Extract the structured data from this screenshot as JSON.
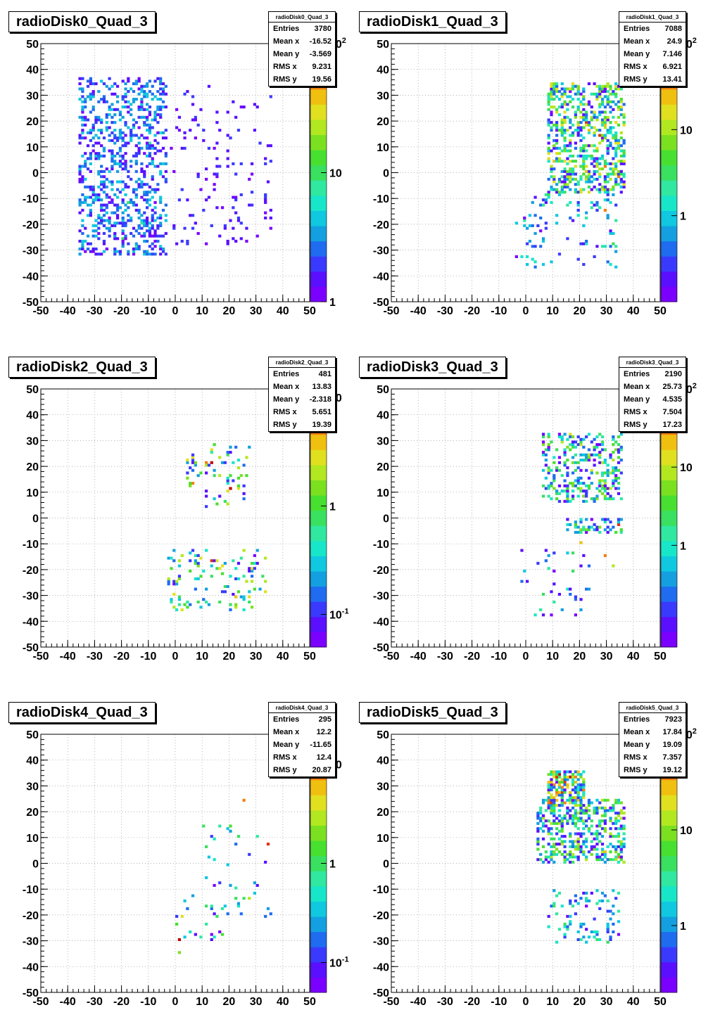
{
  "panels": [
    {
      "title": "radioDisk0_Quad_3",
      "stats": {
        "name": "radioDisk0_Quad_3",
        "rows": [
          {
            "label": "Entries",
            "value": "3780"
          },
          {
            "label": "Mean x",
            "value": "-16.52"
          },
          {
            "label": "Mean y",
            "value": "-3.569"
          },
          {
            "label": "RMS x",
            "value": "9.231"
          },
          {
            "label": "RMS y",
            "value": "19.56"
          }
        ]
      },
      "chart_data": {
        "type": "heatmap",
        "title": "radioDisk0_Quad_3",
        "xlim": [
          -50,
          50
        ],
        "ylim": [
          -50,
          50
        ],
        "x_ticks": [
          -50,
          -40,
          -30,
          -20,
          -10,
          0,
          10,
          20,
          30,
          40,
          50
        ],
        "y_ticks": [
          -50,
          -40,
          -30,
          -20,
          -10,
          0,
          10,
          20,
          30,
          40,
          50
        ],
        "z_scale": "log",
        "zlim": [
          1,
          100
        ],
        "z_ticks": [
          {
            "value": 100,
            "label": "10",
            "sup": "2"
          },
          {
            "value": 10,
            "label": "10"
          },
          {
            "value": 1,
            "label": "1"
          }
        ],
        "grid": true,
        "hot_cells": [
          [
            -20,
            -26,
            9
          ],
          [
            -18,
            -12,
            9
          ],
          [
            -15,
            -29,
            8
          ],
          [
            -13,
            -20,
            7
          ],
          [
            -10,
            11,
            7
          ],
          [
            -6,
            15,
            6
          ],
          [
            -28,
            -18,
            5
          ],
          [
            -16,
            17,
            5
          ],
          [
            -22,
            -10,
            5
          ],
          [
            -30,
            -19,
            4
          ],
          [
            -25,
            24,
            4
          ]
        ],
        "regions": [
          {
            "x": [
              -36,
              -3
            ],
            "y": [
              -32,
              37
            ],
            "density": 0.3,
            "zmax": 5
          },
          {
            "x": [
              -2,
              38
            ],
            "y": [
              -28,
              34
            ],
            "density": 0.05,
            "zmax": 2
          }
        ]
      }
    },
    {
      "title": "radioDisk1_Quad_3",
      "stats": {
        "name": "radioDisk1_Quad_3",
        "rows": [
          {
            "label": "Entries",
            "value": "7088"
          },
          {
            "label": "Mean x",
            "value": "24.9"
          },
          {
            "label": "Mean y",
            "value": "7.146"
          },
          {
            "label": "RMS x",
            "value": "6.921"
          },
          {
            "label": "RMS y",
            "value": "13.41"
          }
        ]
      },
      "chart_data": {
        "type": "heatmap",
        "title": "radioDisk1_Quad_3",
        "xlim": [
          -50,
          50
        ],
        "ylim": [
          -50,
          50
        ],
        "x_ticks": [
          -50,
          -40,
          -30,
          -20,
          -10,
          0,
          10,
          20,
          30,
          40,
          50
        ],
        "y_ticks": [
          -50,
          -40,
          -30,
          -20,
          -10,
          0,
          10,
          20,
          30,
          40,
          50
        ],
        "z_scale": "log",
        "zlim": [
          0.1,
          100
        ],
        "z_ticks": [
          {
            "value": 100,
            "label": "10",
            "sup": "2"
          },
          {
            "value": 10,
            "label": "10"
          },
          {
            "value": 1,
            "label": "1"
          }
        ],
        "grid": true,
        "hot_cells": [
          [
            22,
            19,
            60
          ],
          [
            27,
            14,
            50
          ],
          [
            29,
            2,
            40
          ],
          [
            34,
            -2,
            30
          ],
          [
            29,
            -15,
            30
          ],
          [
            14,
            26,
            20
          ],
          [
            22,
            0,
            20
          ],
          [
            16,
            12,
            15
          ],
          [
            32,
            3,
            15
          ],
          [
            24,
            21,
            12
          ]
        ],
        "regions": [
          {
            "x": [
              8,
              37
            ],
            "y": [
              -8,
              35
            ],
            "density": 0.4,
            "zmax": 20
          },
          {
            "x": [
              -4,
              34
            ],
            "y": [
              -37,
              -8
            ],
            "density": 0.08,
            "zmax": 3
          }
        ]
      }
    },
    {
      "title": "radioDisk2_Quad_3",
      "stats": {
        "name": "radioDisk2_Quad_3",
        "rows": [
          {
            "label": "Entries",
            "value": "481"
          },
          {
            "label": "Mean x",
            "value": "13.83"
          },
          {
            "label": "Mean y",
            "value": "-2.318"
          },
          {
            "label": "RMS x",
            "value": "5.651"
          },
          {
            "label": "RMS y",
            "value": "19.39"
          }
        ]
      },
      "chart_data": {
        "type": "heatmap",
        "title": "radioDisk2_Quad_3",
        "xlim": [
          -50,
          50
        ],
        "ylim": [
          -50,
          50
        ],
        "x_ticks": [
          -50,
          -40,
          -30,
          -20,
          -10,
          0,
          10,
          20,
          30,
          40,
          50
        ],
        "y_ticks": [
          -50,
          -40,
          -30,
          -20,
          -10,
          0,
          10,
          20,
          30,
          40,
          50
        ],
        "z_scale": "log",
        "zlim": [
          0.05,
          12
        ],
        "z_ticks": [
          {
            "value": 10,
            "label": "10"
          },
          {
            "value": 1,
            "label": "1"
          },
          {
            "value": 0.1,
            "label": "10",
            "sup": "-1"
          }
        ],
        "grid": true,
        "hot_cells": [
          [
            13,
            21,
            12
          ],
          [
            20,
            11,
            11
          ],
          [
            13,
            -17,
            8
          ],
          [
            6,
            13,
            6
          ],
          [
            11,
            21,
            5
          ],
          [
            22,
            -31,
            4
          ],
          [
            13,
            26,
            3
          ],
          [
            9,
            -16,
            3
          ]
        ],
        "regions": [
          {
            "x": [
              3,
              28
            ],
            "y": [
              4,
              30
            ],
            "density": 0.1,
            "zmax": 3
          },
          {
            "x": [
              -3,
              34
            ],
            "y": [
              -36,
              -12
            ],
            "density": 0.12,
            "zmax": 3
          }
        ]
      }
    },
    {
      "title": "radioDisk3_Quad_3",
      "stats": {
        "name": "radioDisk3_Quad_3",
        "rows": [
          {
            "label": "Entries",
            "value": "2190"
          },
          {
            "label": "Mean x",
            "value": "25.73"
          },
          {
            "label": "Mean y",
            "value": "4.535"
          },
          {
            "label": "RMS x",
            "value": "7.504"
          },
          {
            "label": "RMS y",
            "value": "17.23"
          }
        ]
      },
      "chart_data": {
        "type": "heatmap",
        "title": "radioDisk3_Quad_3",
        "xlim": [
          -50,
          50
        ],
        "ylim": [
          -50,
          50
        ],
        "x_ticks": [
          -50,
          -40,
          -30,
          -20,
          -10,
          0,
          10,
          20,
          30,
          40,
          50
        ],
        "y_ticks": [
          -50,
          -40,
          -30,
          -20,
          -10,
          0,
          10,
          20,
          30,
          40,
          50
        ],
        "z_scale": "log",
        "zlim": [
          0.05,
          100
        ],
        "z_ticks": [
          {
            "value": 100,
            "label": "10",
            "sup": "2"
          },
          {
            "value": 10,
            "label": "10"
          },
          {
            "value": 1,
            "label": "1"
          }
        ],
        "grid": true,
        "hot_cells": [
          [
            34,
            -3,
            60
          ],
          [
            29,
            -15,
            40
          ],
          [
            20,
            -10,
            20
          ],
          [
            16,
            32,
            15
          ],
          [
            24,
            18,
            12
          ],
          [
            29,
            13,
            10
          ],
          [
            32,
            -19,
            10
          ],
          [
            13,
            29,
            8
          ]
        ],
        "regions": [
          {
            "x": [
              6,
              36
            ],
            "y": [
              6,
              33
            ],
            "density": 0.28,
            "zmax": 8
          },
          {
            "x": [
              14,
              36
            ],
            "y": [
              -6,
              0
            ],
            "density": 0.3,
            "zmax": 6
          },
          {
            "x": [
              -2,
              24
            ],
            "y": [
              -38,
              -10
            ],
            "density": 0.06,
            "zmax": 2
          }
        ]
      }
    },
    {
      "title": "radioDisk4_Quad_3",
      "stats": {
        "name": "radioDisk4_Quad_3",
        "rows": [
          {
            "label": "Entries",
            "value": "295"
          },
          {
            "label": "Mean x",
            "value": "12.2"
          },
          {
            "label": "Mean y",
            "value": "-11.65"
          },
          {
            "label": "RMS x",
            "value": "12.4"
          },
          {
            "label": "RMS y",
            "value": "20.87"
          }
        ]
      },
      "chart_data": {
        "type": "heatmap",
        "title": "radioDisk4_Quad_3",
        "xlim": [
          -50,
          50
        ],
        "ylim": [
          -50,
          50
        ],
        "x_ticks": [
          -50,
          -40,
          -30,
          -20,
          -10,
          0,
          10,
          20,
          30,
          40,
          50
        ],
        "y_ticks": [
          -50,
          -40,
          -30,
          -20,
          -10,
          0,
          10,
          20,
          30,
          40,
          50
        ],
        "z_scale": "log",
        "zlim": [
          0.05,
          20
        ],
        "z_ticks": [
          {
            "value": 10,
            "label": "10"
          },
          {
            "value": 1,
            "label": "1"
          },
          {
            "value": 0.1,
            "label": "10",
            "sup": "-1"
          }
        ],
        "grid": true,
        "hot_cells": [
          [
            1,
            -30,
            20
          ],
          [
            34,
            7,
            12
          ],
          [
            25,
            24,
            8
          ],
          [
            2,
            -21,
            4
          ],
          [
            27,
            -14,
            3
          ],
          [
            1,
            -35,
            2
          ]
        ],
        "regions": [
          {
            "x": [
              10,
              36
            ],
            "y": [
              -22,
              16
            ],
            "density": 0.05,
            "zmax": 1.5
          },
          {
            "x": [
              0,
              18
            ],
            "y": [
              -30,
              -12
            ],
            "density": 0.07,
            "zmax": 1.5
          }
        ]
      }
    },
    {
      "title": "radioDisk5_Quad_3",
      "stats": {
        "name": "radioDisk5_Quad_3",
        "rows": [
          {
            "label": "Entries",
            "value": "7923"
          },
          {
            "label": "Mean x",
            "value": "17.84"
          },
          {
            "label": "Mean y",
            "value": "19.09"
          },
          {
            "label": "RMS x",
            "value": "7.357"
          },
          {
            "label": "RMS y",
            "value": "19.12"
          }
        ]
      },
      "chart_data": {
        "type": "heatmap",
        "title": "radioDisk5_Quad_3",
        "xlim": [
          -50,
          50
        ],
        "ylim": [
          -50,
          50
        ],
        "x_ticks": [
          -50,
          -40,
          -30,
          -20,
          -10,
          0,
          10,
          20,
          30,
          40,
          50
        ],
        "y_ticks": [
          -50,
          -40,
          -30,
          -20,
          -10,
          0,
          10,
          20,
          30,
          40,
          50
        ],
        "z_scale": "log",
        "zlim": [
          0.2,
          100
        ],
        "z_ticks": [
          {
            "value": 100,
            "label": "10",
            "sup": "2"
          },
          {
            "value": 10,
            "label": "10"
          },
          {
            "value": 1,
            "label": "1"
          }
        ],
        "grid": true,
        "hot_cells": [
          [
            12,
            34,
            80
          ],
          [
            16,
            33,
            70
          ],
          [
            14,
            31,
            60
          ],
          [
            13,
            27,
            50
          ],
          [
            10,
            30,
            40
          ],
          [
            34,
            2,
            40
          ],
          [
            29,
            4,
            30
          ],
          [
            18,
            31,
            25
          ]
        ],
        "regions": [
          {
            "x": [
              8,
              22
            ],
            "y": [
              22,
              36
            ],
            "density": 0.65,
            "zmax": 50
          },
          {
            "x": [
              4,
              37
            ],
            "y": [
              0,
              25
            ],
            "density": 0.38,
            "zmax": 15
          },
          {
            "x": [
              8,
              35
            ],
            "y": [
              -31,
              -10
            ],
            "density": 0.18,
            "zmax": 5
          }
        ]
      }
    }
  ]
}
